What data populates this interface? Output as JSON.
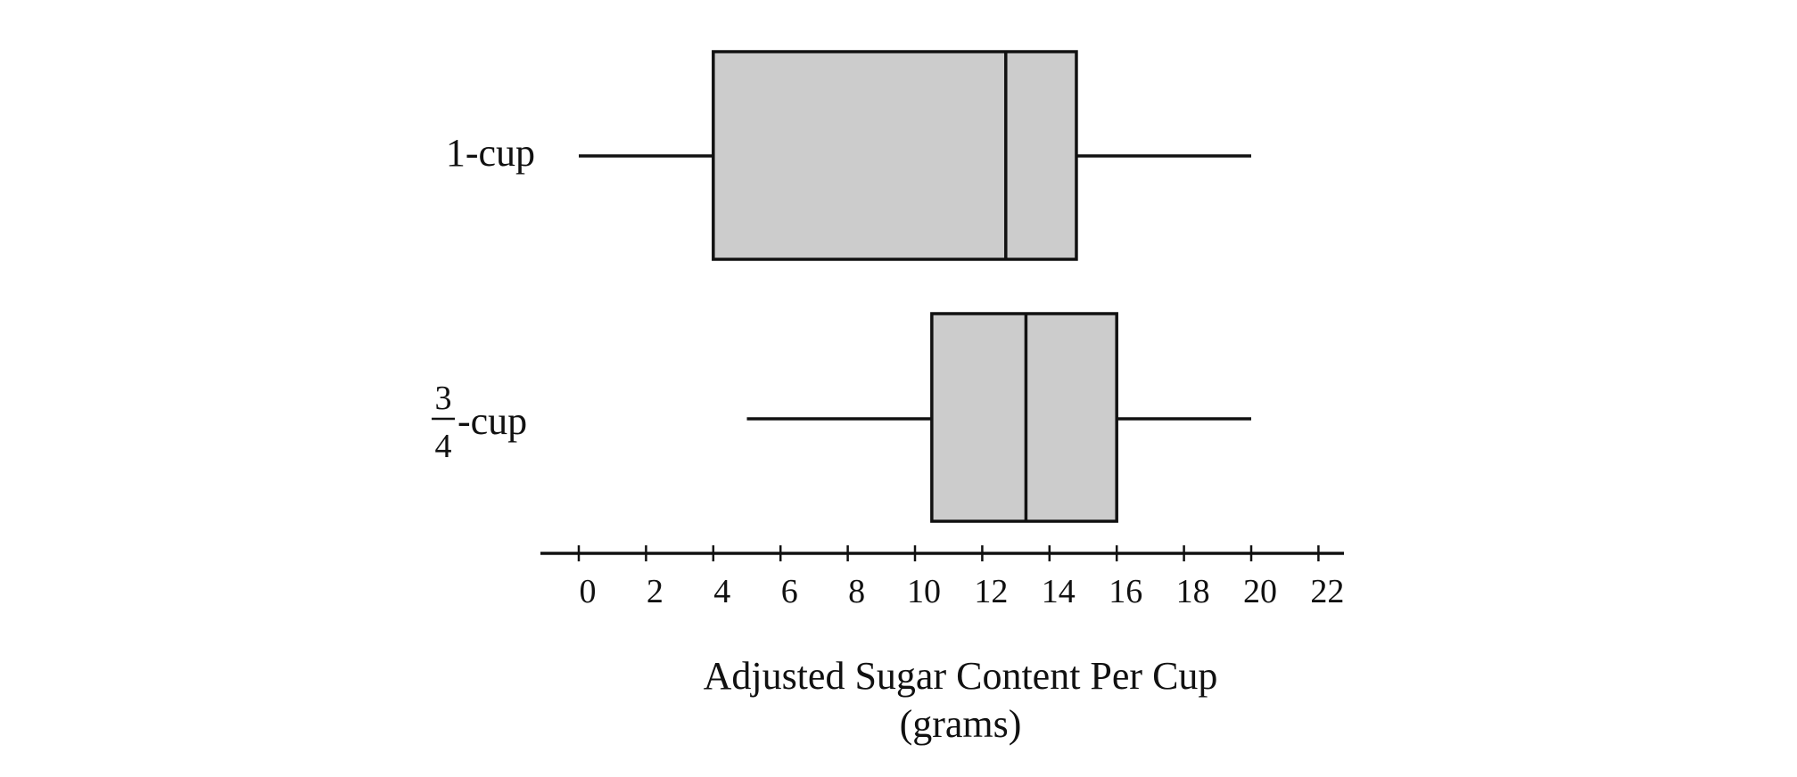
{
  "chart_data": {
    "type": "boxplot",
    "title": "",
    "xlabel": "Adjusted Sugar Content Per Cup",
    "xlabel_units": "(grams)",
    "ylabel": "",
    "xlim": [
      -1,
      23
    ],
    "xticks": [
      0,
      2,
      4,
      6,
      8,
      10,
      12,
      14,
      16,
      18,
      20,
      22
    ],
    "xtick_labels": [
      "0",
      "2",
      "4",
      "6",
      "8",
      "10",
      "12",
      "14",
      "16",
      "18",
      "20",
      "22"
    ],
    "grid": false,
    "colors": {
      "box_fill": "#cccccc",
      "stroke": "#111111"
    },
    "series": [
      {
        "label": "1-cup",
        "label_parts": {
          "numerator": "",
          "denominator": "",
          "suffix": "1-cup"
        },
        "min": 0,
        "q1": 4,
        "median": 12.7,
        "q3": 14.8,
        "max": 20
      },
      {
        "label": "3/4-cup",
        "label_parts": {
          "numerator": "3",
          "denominator": "4",
          "suffix": "-cup"
        },
        "min": 5,
        "q1": 10.5,
        "median": 13.3,
        "q3": 16,
        "max": 20
      }
    ]
  }
}
